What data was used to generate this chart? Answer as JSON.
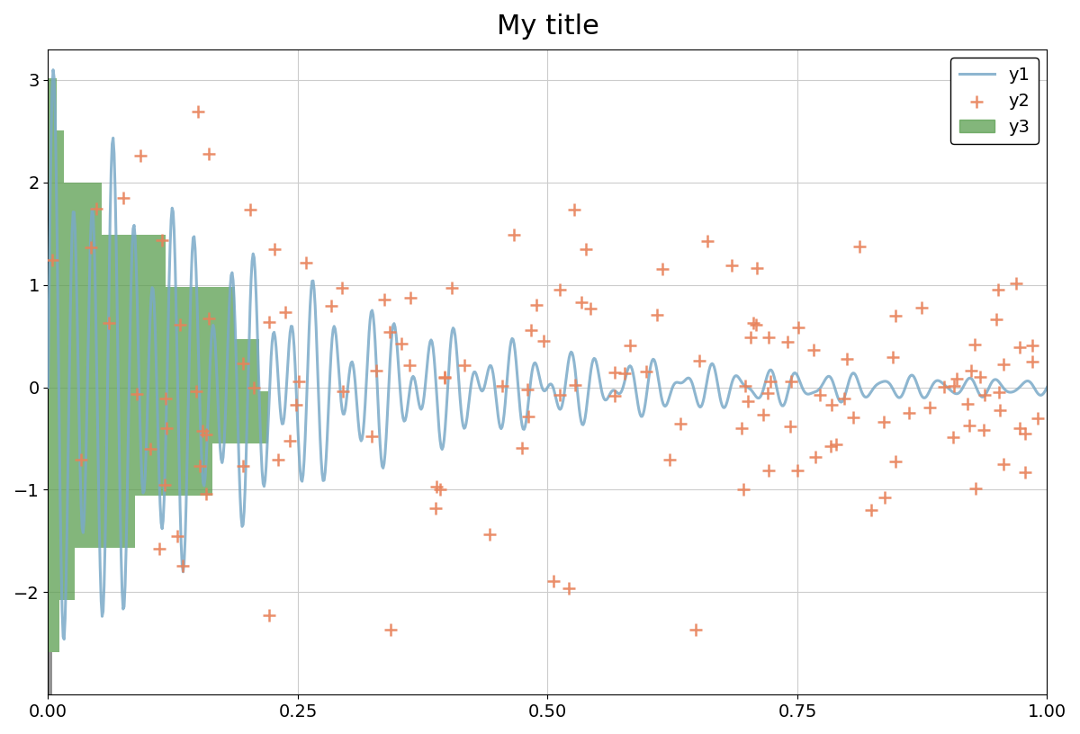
{
  "title": "My title",
  "title_fontsize": 22,
  "seed": 19680801,
  "n_scatter": 150,
  "n_line": 1000,
  "line_color": "#7aaac8",
  "scatter_color": "#e8825a",
  "hist_color": "#5a9e4f",
  "gray_color": "#808080",
  "hist_alpha": 0.75,
  "line_alpha": 0.85,
  "line_width": 2.2,
  "scatter_marker": "+",
  "scatter_size": 100,
  "scatter_linewidth": 1.8,
  "scatter_alpha": 0.9,
  "legend_labels": [
    "y1",
    "y2",
    "y3"
  ],
  "legend_loc": "upper right",
  "legend_fontsize": 14,
  "grid_color": "#cccccc",
  "background_color": "#ffffff",
  "figsize": [
    12.0,
    8.16
  ],
  "dpi": 100,
  "xlim": [
    0.0,
    1.0
  ],
  "ylim": [
    -3.0,
    3.3
  ],
  "hist_bins": 15,
  "hist_scale": 0.22,
  "line_freq": 50,
  "line_decay": 5.0,
  "line_amplitude": 2.5,
  "tick_labelsize": 14,
  "xticks": [
    0.0,
    0.25,
    0.5,
    0.75,
    1.0
  ],
  "yticks": [
    -2,
    -1,
    0,
    1,
    2,
    3
  ]
}
